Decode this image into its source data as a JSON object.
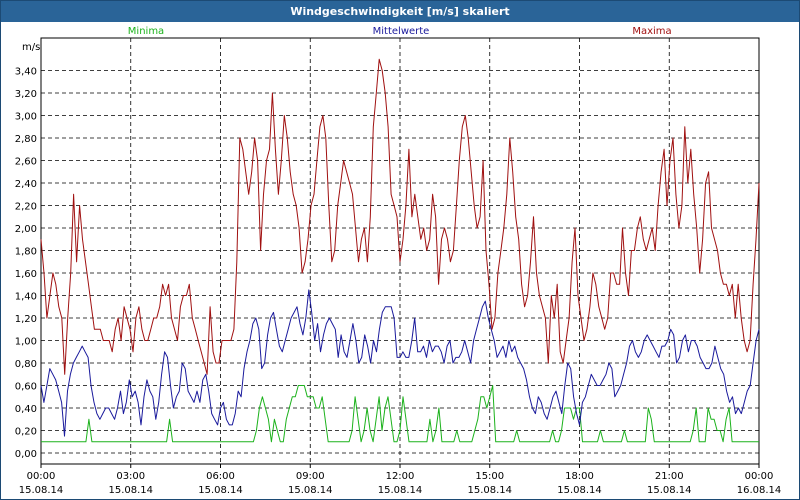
{
  "title": "Windgeschwindigkeit [m/s] skaliert",
  "colors": {
    "titlebar": "#2a6498",
    "minima": "#1cb21c",
    "mittel": "#1a1a9c",
    "maxima": "#a01010",
    "grid": "#000000"
  },
  "chart_data": {
    "type": "line",
    "title": "Windgeschwindigkeit [m/s] skaliert",
    "ylabel": "m/s",
    "xlabel": "",
    "ylim": [
      0,
      3.6
    ],
    "xlim": [
      0,
      24
    ],
    "y_ticks": [
      "0,00",
      "0,20",
      "0,40",
      "0,60",
      "0,80",
      "1,00",
      "1,20",
      "1,40",
      "1,60",
      "1,80",
      "2,00",
      "2,20",
      "2,40",
      "2,60",
      "2,80",
      "3,00",
      "3,20",
      "3,40"
    ],
    "x_ticks": [
      {
        "time": "00:00",
        "date": "15.08.14"
      },
      {
        "time": "03:00",
        "date": "15.08.14"
      },
      {
        "time": "06:00",
        "date": "15.08.14"
      },
      {
        "time": "09:00",
        "date": "15.08.14"
      },
      {
        "time": "12:00",
        "date": "15.08.14"
      },
      {
        "time": "15:00",
        "date": "15.08.14"
      },
      {
        "time": "18:00",
        "date": "15.08.14"
      },
      {
        "time": "21:00",
        "date": "15.08.14"
      },
      {
        "time": "00:00",
        "date": "16.08.14"
      }
    ],
    "grid": true,
    "legend": "top",
    "x_step_hours": 0.1667,
    "series": [
      {
        "name": "Minima",
        "values": [
          0.1,
          0.1,
          0.1,
          0.1,
          0.1,
          0.1,
          0.1,
          0.1,
          0.1,
          0.1,
          0.1,
          0.1,
          0.1,
          0.1,
          0.1,
          0.1,
          0.3,
          0.1,
          0.1,
          0.1,
          0.1,
          0.1,
          0.1,
          0.1,
          0.1,
          0.1,
          0.1,
          0.1,
          0.1,
          0.1,
          0.1,
          0.1,
          0.1,
          0.1,
          0.1,
          0.1,
          0.1,
          0.1,
          0.1,
          0.1,
          0.1,
          0.1,
          0.1,
          0.3,
          0.1,
          0.1,
          0.1,
          0.1,
          0.1,
          0.1,
          0.1,
          0.1,
          0.1,
          0.1,
          0.1,
          0.1,
          0.1,
          0.1,
          0.1,
          0.1,
          0.1,
          0.1,
          0.1,
          0.1,
          0.1,
          0.1,
          0.1,
          0.1,
          0.1,
          0.1,
          0.1,
          0.1,
          0.2,
          0.4,
          0.5,
          0.4,
          0.3,
          0.1,
          0.3,
          0.2,
          0.1,
          0.1,
          0.3,
          0.4,
          0.5,
          0.5,
          0.6,
          0.6,
          0.6,
          0.5,
          0.5,
          0.5,
          0.4,
          0.4,
          0.5,
          0.3,
          0.1,
          0.1,
          0.1,
          0.1,
          0.1,
          0.1,
          0.1,
          0.1,
          0.2,
          0.5,
          0.3,
          0.1,
          0.2,
          0.4,
          0.2,
          0.1,
          0.3,
          0.5,
          0.2,
          0.4,
          0.5,
          0.3,
          0.1,
          0.1,
          0.2,
          0.5,
          0.3,
          0.1,
          0.1,
          0.1,
          0.1,
          0.1,
          0.1,
          0.1,
          0.3,
          0.1,
          0.2,
          0.4,
          0.1,
          0.1,
          0.1,
          0.1,
          0.1,
          0.2,
          0.1,
          0.1,
          0.1,
          0.1,
          0.1,
          0.2,
          0.3,
          0.5,
          0.5,
          0.4,
          0.5,
          0.6,
          0.1,
          0.1,
          0.1,
          0.1,
          0.1,
          0.1,
          0.1,
          0.2,
          0.1,
          0.1,
          0.1,
          0.1,
          0.1,
          0.1,
          0.1,
          0.1,
          0.1,
          0.1,
          0.1,
          0.2,
          0.1,
          0.1,
          0.2,
          0.4,
          0.4,
          0.4,
          0.3,
          0.4,
          0.4,
          0.1,
          0.1,
          0.1,
          0.1,
          0.1,
          0.1,
          0.2,
          0.1,
          0.1,
          0.1,
          0.1,
          0.1,
          0.1,
          0.1,
          0.2,
          0.1,
          0.1,
          0.1,
          0.1,
          0.1,
          0.1,
          0.1,
          0.4,
          0.3,
          0.1,
          0.1,
          0.1,
          0.1,
          0.1,
          0.1,
          0.1,
          0.1,
          0.1,
          0.1,
          0.1,
          0.1,
          0.1,
          0.2,
          0.4,
          0.1,
          0.1,
          0.1,
          0.4,
          0.3,
          0.3,
          0.2,
          0.2,
          0.1,
          0.3,
          0.4,
          0.1,
          0.1,
          0.1,
          0.1,
          0.1,
          0.1,
          0.1,
          0.1,
          0.1,
          0.1
        ]
      },
      {
        "name": "Mittelwerte",
        "values": [
          0.6,
          0.45,
          0.6,
          0.75,
          0.7,
          0.65,
          0.55,
          0.45,
          0.15,
          0.55,
          0.7,
          0.8,
          0.85,
          0.9,
          0.95,
          0.9,
          0.85,
          0.6,
          0.45,
          0.35,
          0.3,
          0.35,
          0.4,
          0.4,
          0.35,
          0.3,
          0.4,
          0.55,
          0.35,
          0.45,
          0.65,
          0.5,
          0.55,
          0.45,
          0.25,
          0.5,
          0.65,
          0.55,
          0.5,
          0.3,
          0.45,
          0.7,
          0.9,
          0.85,
          0.6,
          0.4,
          0.5,
          0.55,
          0.8,
          0.75,
          0.55,
          0.5,
          0.45,
          0.55,
          0.45,
          0.65,
          0.7,
          0.55,
          0.35,
          0.3,
          0.25,
          0.4,
          0.45,
          0.3,
          0.25,
          0.25,
          0.35,
          0.55,
          0.5,
          0.75,
          0.9,
          1.0,
          1.15,
          1.2,
          1.1,
          0.75,
          0.8,
          1.05,
          1.2,
          1.25,
          1.1,
          0.95,
          0.9,
          1.0,
          1.1,
          1.2,
          1.25,
          1.3,
          1.15,
          1.05,
          1.2,
          1.45,
          1.25,
          1.0,
          1.15,
          0.9,
          1.05,
          1.15,
          1.2,
          1.15,
          1.1,
          0.85,
          1.05,
          0.9,
          0.85,
          1.0,
          1.15,
          1.0,
          0.8,
          0.85,
          1.05,
          0.95,
          0.8,
          1.0,
          0.9,
          1.1,
          1.25,
          1.3,
          1.3,
          1.3,
          1.2,
          0.85,
          0.85,
          0.9,
          0.85,
          0.85,
          1.0,
          1.2,
          0.9,
          0.9,
          0.95,
          0.85,
          1.0,
          0.9,
          0.95,
          0.95,
          0.9,
          0.8,
          0.95,
          1.0,
          0.8,
          0.85,
          0.85,
          0.9,
          1.0,
          0.9,
          0.8,
          1.0,
          1.1,
          1.2,
          1.3,
          1.35,
          1.2,
          1.1,
          1.0,
          0.85,
          0.9,
          0.95,
          0.85,
          1.0,
          0.9,
          0.95,
          0.85,
          0.8,
          0.75,
          0.65,
          0.5,
          0.4,
          0.35,
          0.5,
          0.45,
          0.35,
          0.3,
          0.4,
          0.5,
          0.55,
          0.45,
          0.35,
          0.6,
          0.8,
          0.75,
          0.5,
          0.35,
          0.25,
          0.45,
          0.5,
          0.6,
          0.7,
          0.65,
          0.6,
          0.6,
          0.65,
          0.7,
          0.8,
          0.75,
          0.5,
          0.55,
          0.6,
          0.7,
          0.8,
          0.95,
          1.0,
          0.9,
          0.85,
          0.9,
          1.0,
          1.05,
          1.0,
          0.95,
          0.9,
          0.85,
          0.95,
          0.95,
          1.0,
          1.1,
          1.05,
          0.8,
          0.85,
          1.0,
          1.05,
          0.9,
          1.0,
          1.0,
          0.95,
          0.85,
          0.8,
          0.75,
          0.75,
          0.8,
          0.95,
          0.85,
          0.75,
          0.7,
          0.55,
          0.45,
          0.5,
          0.35,
          0.4,
          0.35,
          0.45,
          0.55,
          0.6,
          0.8,
          1.0,
          1.1
        ]
      },
      {
        "name": "Maxima",
        "values": [
          1.9,
          1.6,
          1.2,
          1.4,
          1.6,
          1.5,
          1.3,
          1.2,
          0.7,
          1.2,
          1.6,
          2.3,
          1.7,
          2.2,
          1.9,
          1.7,
          1.5,
          1.3,
          1.1,
          1.1,
          1.1,
          1.0,
          1.0,
          1.0,
          0.9,
          1.1,
          1.2,
          1.0,
          1.3,
          1.2,
          1.1,
          0.9,
          1.2,
          1.3,
          1.1,
          1.0,
          1.0,
          1.1,
          1.2,
          1.2,
          1.3,
          1.5,
          1.4,
          1.5,
          1.2,
          1.1,
          1.0,
          1.3,
          1.4,
          1.4,
          1.5,
          1.2,
          1.1,
          1.0,
          0.9,
          0.8,
          0.7,
          1.3,
          0.9,
          0.8,
          0.8,
          1.0,
          1.0,
          1.0,
          1.0,
          1.1,
          1.7,
          2.8,
          2.7,
          2.5,
          2.3,
          2.5,
          2.8,
          2.6,
          1.8,
          2.3,
          2.6,
          2.7,
          3.2,
          2.7,
          2.3,
          2.6,
          3.0,
          2.8,
          2.5,
          2.3,
          2.2,
          2.0,
          1.6,
          1.7,
          1.9,
          2.2,
          2.3,
          2.6,
          2.9,
          3.0,
          2.8,
          2.2,
          1.7,
          1.8,
          2.2,
          2.4,
          2.6,
          2.5,
          2.4,
          2.3,
          2.0,
          1.7,
          1.9,
          2.0,
          1.7,
          2.1,
          2.9,
          3.2,
          3.5,
          3.4,
          3.2,
          2.9,
          2.3,
          2.2,
          2.1,
          1.7,
          1.9,
          2.2,
          2.7,
          2.1,
          2.3,
          2.1,
          1.9,
          2.0,
          1.8,
          1.9,
          2.3,
          2.1,
          1.5,
          1.9,
          2.0,
          1.9,
          1.7,
          1.8,
          2.2,
          2.6,
          2.9,
          3.0,
          2.8,
          2.5,
          2.2,
          2.0,
          2.1,
          2.6,
          1.8,
          1.5,
          1.1,
          1.2,
          1.6,
          1.8,
          2.0,
          2.3,
          2.8,
          2.5,
          2.1,
          1.9,
          1.5,
          1.3,
          1.4,
          1.7,
          2.1,
          1.6,
          1.4,
          1.3,
          1.2,
          0.8,
          1.4,
          1.2,
          1.5,
          0.9,
          0.8,
          1.0,
          1.2,
          1.7,
          2.0,
          1.4,
          1.2,
          1.0,
          1.1,
          1.3,
          1.6,
          1.5,
          1.3,
          1.2,
          1.1,
          1.2,
          1.6,
          1.6,
          1.5,
          1.5,
          2.0,
          1.6,
          1.4,
          1.8,
          1.8,
          2.0,
          2.1,
          1.9,
          1.8,
          1.9,
          2.0,
          1.8,
          2.2,
          2.5,
          2.7,
          2.2,
          2.6,
          2.8,
          2.3,
          2.0,
          2.2,
          2.9,
          2.4,
          2.7,
          2.3,
          2.0,
          1.6,
          1.9,
          2.4,
          2.5,
          2.0,
          1.9,
          1.8,
          1.6,
          1.5,
          1.5,
          1.4,
          1.5,
          1.2,
          1.5,
          1.2,
          1.0,
          0.9,
          1.0,
          1.5,
          1.9,
          2.4
        ]
      }
    ]
  }
}
